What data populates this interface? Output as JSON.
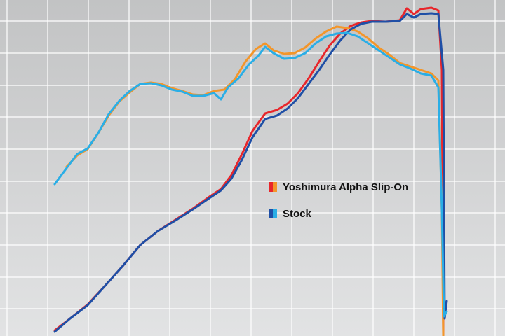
{
  "chart_data": {
    "type": "line",
    "xlim": [
      0,
      720
    ],
    "ylim": [
      0,
      480
    ],
    "grid": true,
    "xticks": [
      10,
      68,
      126,
      184,
      242,
      300,
      358,
      416,
      474,
      532,
      590,
      648,
      706
    ],
    "yticks": [
      39,
      84,
      130,
      176,
      221,
      267,
      313,
      358,
      404,
      450
    ],
    "series": [
      {
        "name": "Yoshimura Alpha Slip-On",
        "lines": [
          {
            "color": "#e8262b",
            "x": [
              78,
              100,
              125,
              150,
              175,
              200,
              225,
              250,
              275,
              300,
              315,
              330,
              345,
              360,
              378,
              395,
              410,
              425,
              440,
              455,
              470,
              485,
              500,
              515,
              530,
              550,
              570,
              580,
              590,
              600,
              615,
              625,
              630,
              632
            ],
            "values": [
              8,
              25,
              45,
              72,
              100,
              130,
              150,
              166,
              182,
              200,
              210,
              230,
              260,
              293,
              318,
              323,
              332,
              347,
              368,
              392,
              415,
              432,
              443,
              448,
              450,
              449,
              451,
              468,
              460,
              467,
              469,
              465,
              380,
              2
            ]
          },
          {
            "color": "#f3962a",
            "x": [
              95,
              110,
              125,
              140,
              155,
              170,
              185,
              200,
              215,
              230,
              245,
              260,
              275,
              290,
              305,
              320,
              335,
              350,
              365,
              378,
              390,
              405,
              420,
              435,
              450,
              465,
              480,
              495,
              510,
              525,
              540,
              555,
              570,
              585,
              600,
              615,
              625,
              630,
              632
            ],
            "values": [
              242,
              258,
              267,
              290,
              315,
              335,
              348,
              360,
              362,
              360,
              354,
              350,
              345,
              344,
              350,
              352,
              367,
              392,
              410,
              418,
              408,
              403,
              404,
              412,
              425,
              435,
              442,
              440,
              435,
              425,
              412,
              402,
              390,
              385,
              380,
              375,
              365,
              180,
              0
            ]
          }
        ]
      },
      {
        "name": "Stock",
        "lines": [
          {
            "color": "#1f4fa6",
            "x": [
              78,
              100,
              125,
              150,
              175,
              200,
              225,
              250,
              275,
              300,
              315,
              330,
              345,
              360,
              378,
              395,
              410,
              425,
              440,
              455,
              470,
              485,
              500,
              515,
              530,
              550,
              570,
              580,
              590,
              600,
              615,
              625,
              632,
              634,
              637
            ],
            "values": [
              6,
              25,
              44,
              72,
              100,
              130,
              150,
              165,
              181,
              198,
              208,
              225,
              252,
              284,
              310,
              315,
              325,
              340,
              360,
              380,
              402,
              422,
              438,
              446,
              449,
              449,
              450,
              460,
              455,
              460,
              461,
              460,
              380,
              25,
              50
            ]
          },
          {
            "color": "#2aaee6",
            "x": [
              78,
              95,
              110,
              125,
              140,
              155,
              170,
              185,
              200,
              215,
              230,
              245,
              260,
              275,
              290,
              305,
              315,
              325,
              340,
              355,
              368,
              378,
              390,
              405,
              420,
              435,
              450,
              465,
              480,
              495,
              510,
              525,
              540,
              555,
              570,
              585,
              600,
              615,
              625,
              630,
              633,
              637
            ],
            "values": [
              217,
              240,
              260,
              268,
              290,
              317,
              336,
              350,
              360,
              361,
              358,
              352,
              349,
              343,
              343,
              347,
              338,
              355,
              368,
              388,
              400,
              413,
              404,
              396,
              397,
              404,
              418,
              428,
              432,
              433,
              428,
              418,
              408,
              398,
              388,
              382,
              375,
              372,
              355,
              180,
              28,
              35
            ]
          }
        ]
      }
    ]
  }
}
